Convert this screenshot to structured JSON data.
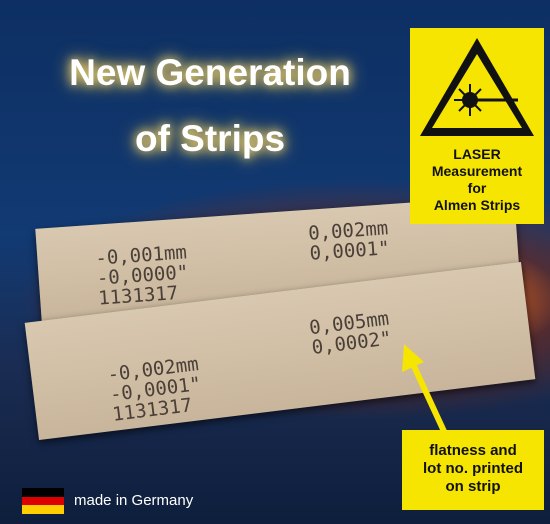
{
  "headline": [
    "New Generation",
    "of Strips"
  ],
  "laser_box": [
    "LASER",
    "Measurement",
    "for",
    "Almen Strips"
  ],
  "strips": [
    {
      "left": [
        "-0,001mm",
        "-0,0000\"",
        "1131317"
      ],
      "right": [
        "0,002mm",
        "0,0001\""
      ]
    },
    {
      "left": [
        "-0,002mm",
        "-0,0001\"",
        "1131317"
      ],
      "right": [
        "0,005mm",
        "0,0002\""
      ]
    }
  ],
  "callout": [
    "flatness and",
    "lot no. printed",
    "on strip"
  ],
  "footer": "made in Germany"
}
